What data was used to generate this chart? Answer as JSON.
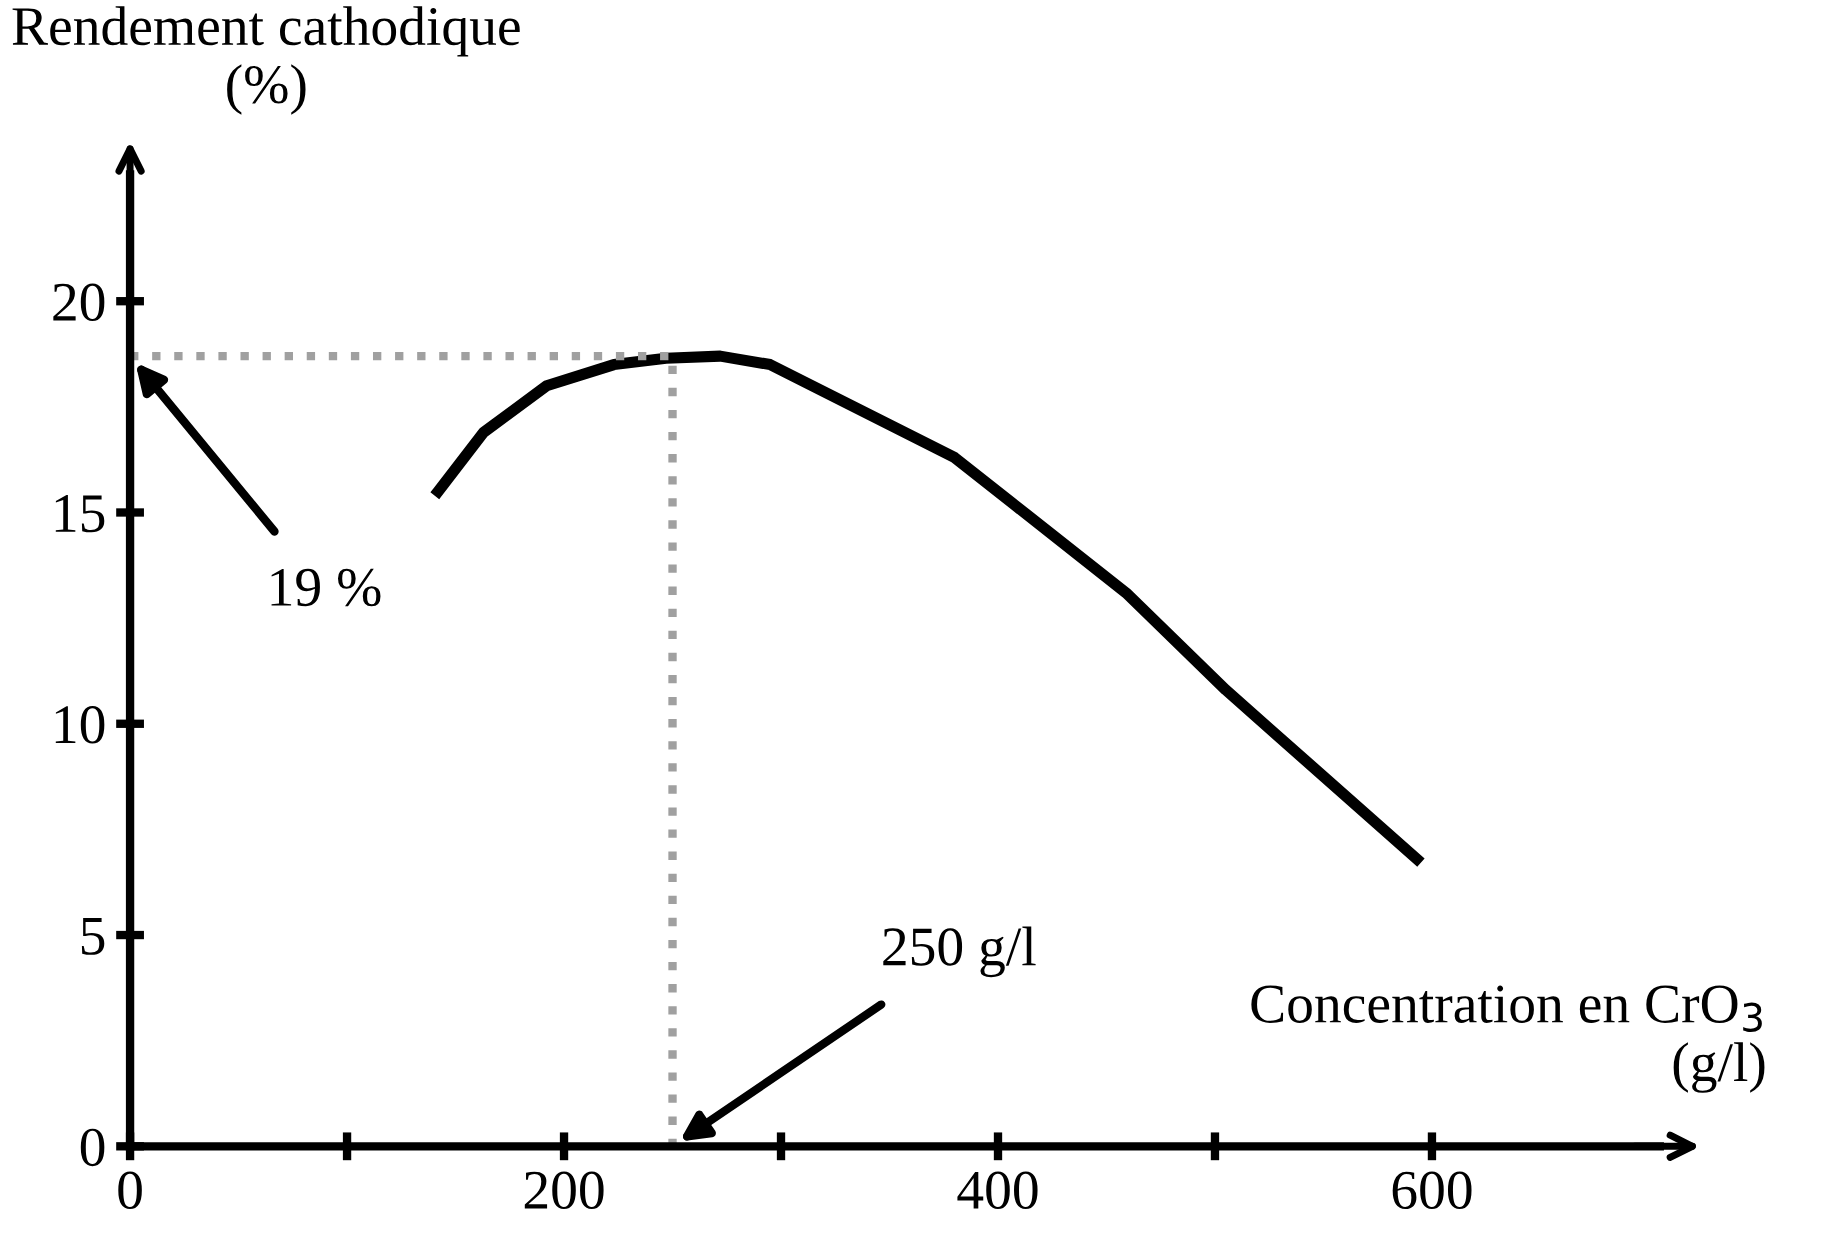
{
  "chart_data": {
    "type": "line",
    "ylabel": "Rendement cathodique\n(%)",
    "xlabel": "Concentration en CrO$_{3}$\n(g/l)",
    "xlim": [
      0,
      705
    ],
    "ylim": [
      0,
      23
    ],
    "xticks": [
      0,
      {
        "value": 100,
        "label": null
      },
      200,
      {
        "value": 300,
        "label": null
      },
      400,
      {
        "value": 500,
        "label": null
      },
      600
    ],
    "yticks": [
      0,
      5,
      10,
      15,
      20
    ],
    "grid": false,
    "legend": false,
    "marker": "none",
    "series": [
      {
        "color": "#000000",
        "line_style": "solid",
        "x": [
          142,
          163,
          192,
          223,
          247,
          272,
          295,
          380,
          459,
          505,
          593
        ],
        "values": [
          15.5,
          16.9,
          18.0,
          18.5,
          18.65,
          18.7,
          18.5,
          16.3,
          13.1,
          10.8,
          6.8
        ]
      },
      {
        "color": "#a0a0a0",
        "line_style": "dotted",
        "x": [
          0,
          250,
          250
        ],
        "values": [
          18.7,
          18.7,
          0
        ]
      }
    ],
    "annotations": [
      {
        "text": "19 %",
        "x": 0,
        "y": 18.7
      },
      {
        "text": "250 g/l",
        "x": 250,
        "y": 0
      }
    ]
  }
}
